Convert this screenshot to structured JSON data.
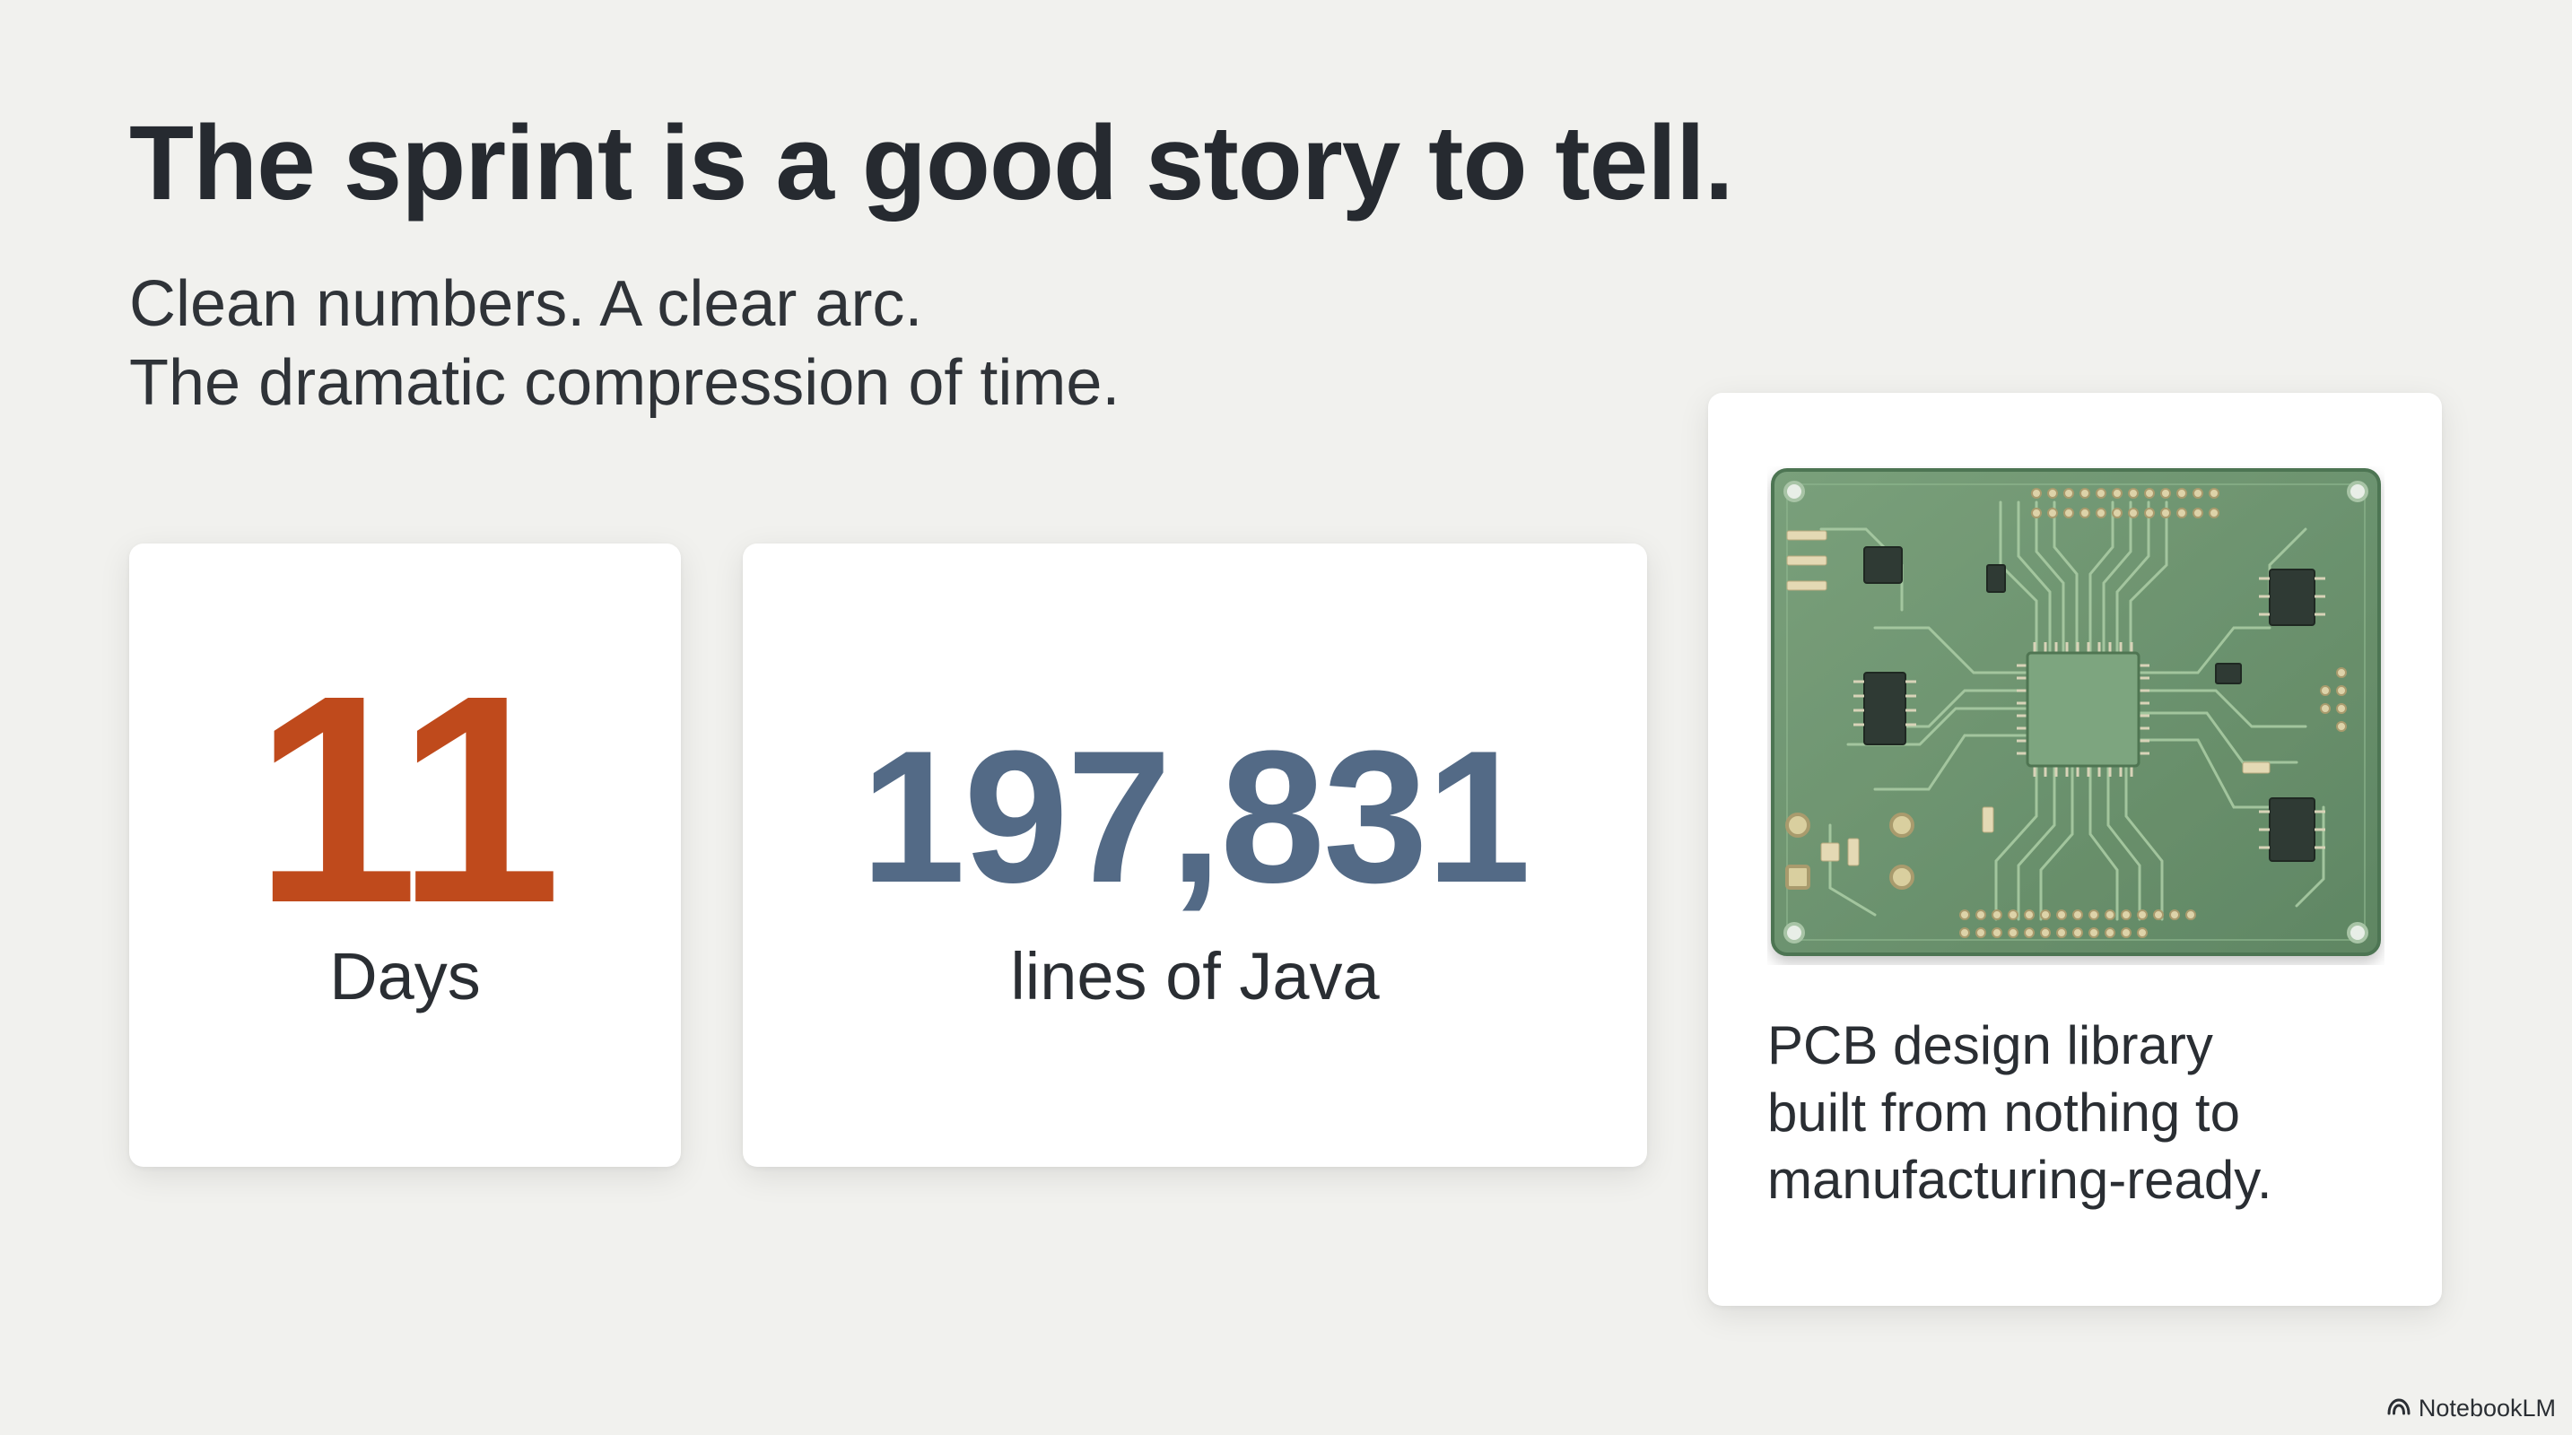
{
  "slide": {
    "title": "The sprint is a good story to tell.",
    "subtitle_lines": [
      "Clean numbers. A clear arc.",
      "The dramatic compression of time."
    ]
  },
  "stats": {
    "days": {
      "value": "11",
      "label": "Days",
      "color": "#bf4a1c"
    },
    "lines": {
      "value": "197,831",
      "label": "lines of Java",
      "color": "#536a86"
    }
  },
  "pcb_card": {
    "image_icon": "circuit-board-image",
    "caption_lines": [
      "PCB design library",
      "built from nothing to",
      "manufacturing-ready."
    ]
  },
  "branding": {
    "icon": "notebooklm-logo-icon",
    "label": "NotebookLM"
  },
  "colors": {
    "background": "#f1f1ee",
    "card": "#ffffff",
    "pcb_green": "#6a8f6c"
  }
}
